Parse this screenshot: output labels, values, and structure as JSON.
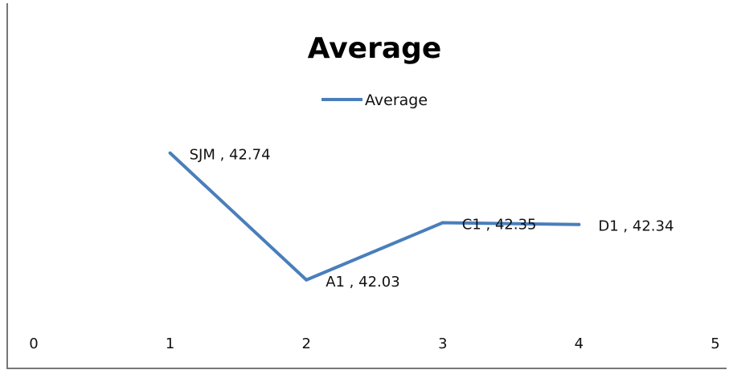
{
  "chart_data": {
    "type": "line",
    "title": "Average",
    "legend": {
      "position": "top",
      "entries": [
        "Average"
      ]
    },
    "xlim": [
      0,
      5
    ],
    "x_ticks": [
      0,
      1,
      2,
      3,
      4,
      5
    ],
    "grid": false,
    "series": [
      {
        "name": "Average",
        "color": "#4a7ebb",
        "points": [
          {
            "x": 1,
            "category": "SJM",
            "value": 42.74,
            "label": "SJM , 42.74"
          },
          {
            "x": 2,
            "category": "A1",
            "value": 42.03,
            "label": "A1 , 42.03"
          },
          {
            "x": 3,
            "category": "C1",
            "value": 42.35,
            "label": "C1 , 42.35"
          },
          {
            "x": 4,
            "category": "D1",
            "value": 42.34,
            "label": "D1 , 42.34"
          }
        ]
      }
    ]
  }
}
